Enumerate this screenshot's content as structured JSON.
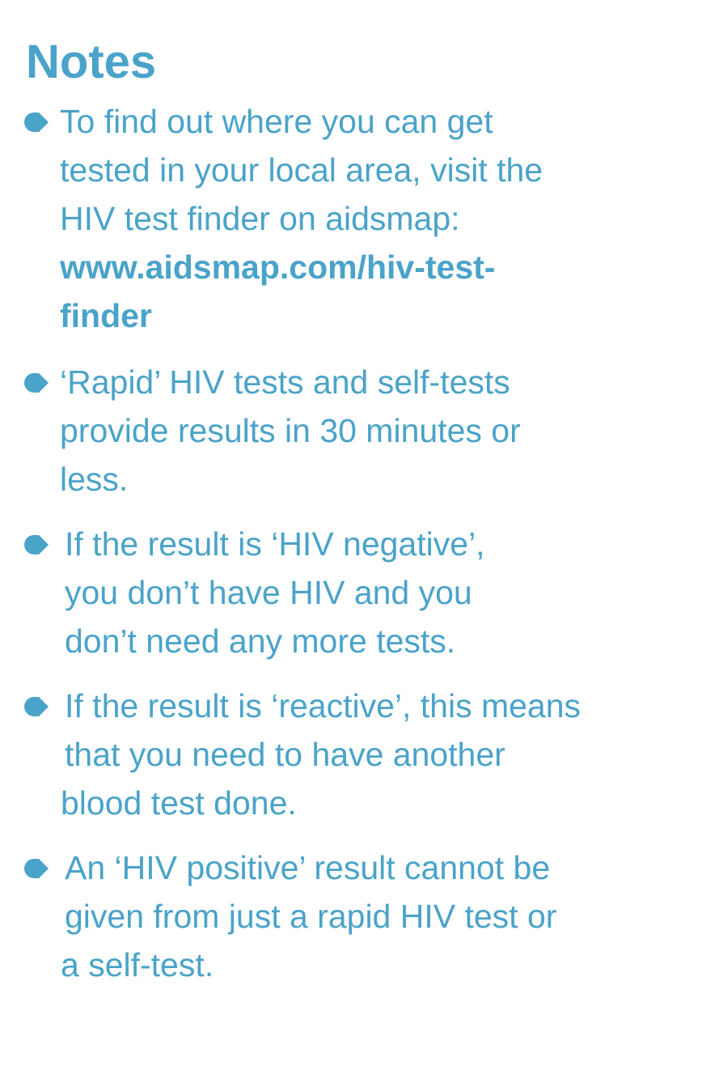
{
  "title": "Notes",
  "accent_color": "#4aa3c9",
  "bullet_icon": "teardrop-right-bullet",
  "items": [
    {
      "lines": [
        "To find out where you can get",
        "tested in your local area, visit the",
        "HIV test finder on aidsmap:"
      ],
      "link_lines": [
        "www.aidsmap.com/hiv-test-",
        "finder"
      ]
    },
    {
      "lines": [
        "‘Rapid’ HIV tests and self-tests",
        "provide results in 30 minutes or",
        "less."
      ]
    },
    {
      "lines": [
        "If the result is ‘HIV negative’,",
        "you don’t have HIV and you",
        "don’t need any more tests."
      ]
    },
    {
      "lines": [
        "If the result is ‘reactive’, this means",
        "that you need to have another",
        "blood test done."
      ]
    },
    {
      "lines": [
        "An ‘HIV positive’ result cannot be",
        "given from just a rapid HIV test or",
        "a self-test."
      ]
    }
  ]
}
